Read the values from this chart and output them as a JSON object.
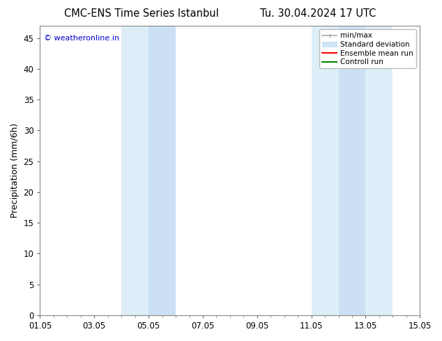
{
  "title_left": "CMC-ENS Time Series Istanbul",
  "title_right": "Tu. 30.04.2024 17 UTC",
  "ylabel": "Precipitation (mm/6h)",
  "watermark": "© weatheronline.in",
  "watermark_color": "#0000cc",
  "background_color": "#ffffff",
  "plot_bg_color": "#ffffff",
  "ylim": [
    0,
    47
  ],
  "yticks": [
    0,
    5,
    10,
    15,
    20,
    25,
    30,
    35,
    40,
    45
  ],
  "xmin_num": 0,
  "xmax_num": 14,
  "xtick_labels": [
    "01.05",
    "03.05",
    "05.05",
    "07.05",
    "09.05",
    "11.05",
    "13.05",
    "15.05"
  ],
  "xtick_positions": [
    0,
    2,
    4,
    6,
    8,
    10,
    12,
    14
  ],
  "shaded_regions": [
    {
      "xstart": 3.0,
      "xend": 4.0,
      "color": "#ddeef8"
    },
    {
      "xstart": 4.0,
      "xend": 5.0,
      "color": "#cce0f5"
    },
    {
      "xstart": 10.0,
      "xend": 11.0,
      "color": "#ddeef8"
    },
    {
      "xstart": 11.0,
      "xend": 12.0,
      "color": "#cce0f5"
    },
    {
      "xstart": 12.0,
      "xend": 13.0,
      "color": "#ddeef8"
    }
  ],
  "legend_items": [
    {
      "label": "min/max",
      "color": "#aaaaaa",
      "lw": 1.2,
      "style": "line_with_caps"
    },
    {
      "label": "Standard deviation",
      "color": "#d0e4f4",
      "lw": 8,
      "style": "band"
    },
    {
      "label": "Ensemble mean run",
      "color": "#ff0000",
      "lw": 1.5,
      "style": "line"
    },
    {
      "label": "Controll run",
      "color": "#008800",
      "lw": 1.5,
      "style": "line"
    }
  ],
  "tick_fontsize": 8.5,
  "label_fontsize": 9,
  "title_fontsize": 10.5,
  "watermark_fontsize": 8,
  "spine_color": "#888888"
}
